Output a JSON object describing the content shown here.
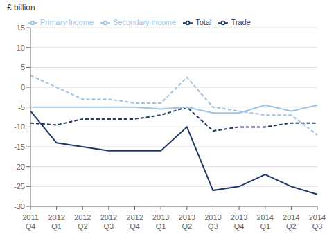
{
  "chart_data": {
    "type": "line",
    "y_label": "£ billion",
    "categories": [
      "2011\nQ4",
      "2012\nQ1",
      "2012\nQ2",
      "2012\nQ3",
      "2012\nQ4",
      "2013\nQ1",
      "2013\nQ2",
      "2013\nQ3",
      "2013\nQ4",
      "2014\nQ1",
      "2014\nQ2",
      "2014\nQ3"
    ],
    "series": [
      {
        "name": "Total",
        "color": "#1f3864",
        "line_style": "solid",
        "values": [
          -6,
          -14,
          -15,
          -16,
          -16,
          -16,
          -10,
          -26,
          -25,
          -22,
          -25,
          -27
        ]
      },
      {
        "name": "Trade",
        "color": "#1f3864",
        "line_style": "dashed",
        "values": [
          -9,
          -9.5,
          -8,
          -8,
          -8,
          -7,
          -5,
          -11,
          -10,
          -10,
          -9,
          -9
        ]
      },
      {
        "name": "Primary Income",
        "color": "#9dc3e6",
        "line_style": "dashed",
        "values": [
          3,
          0,
          -3,
          -3,
          -4,
          -4,
          2.5,
          -5,
          -6,
          -7,
          -7,
          -12
        ]
      },
      {
        "name": "Secondary income",
        "color": "#9dc3e6",
        "line_style": "solid",
        "values": [
          -5,
          -5,
          -5,
          -5,
          -5,
          -5.5,
          -5,
          -6.5,
          -6.5,
          -4.5,
          -6,
          -4.5
        ]
      }
    ],
    "ylim": [
      -30,
      15
    ],
    "yticks": [
      -30,
      -25,
      -20,
      -15,
      -10,
      -5,
      0,
      5,
      10,
      15
    ],
    "grid": true,
    "legend": "upper left"
  }
}
